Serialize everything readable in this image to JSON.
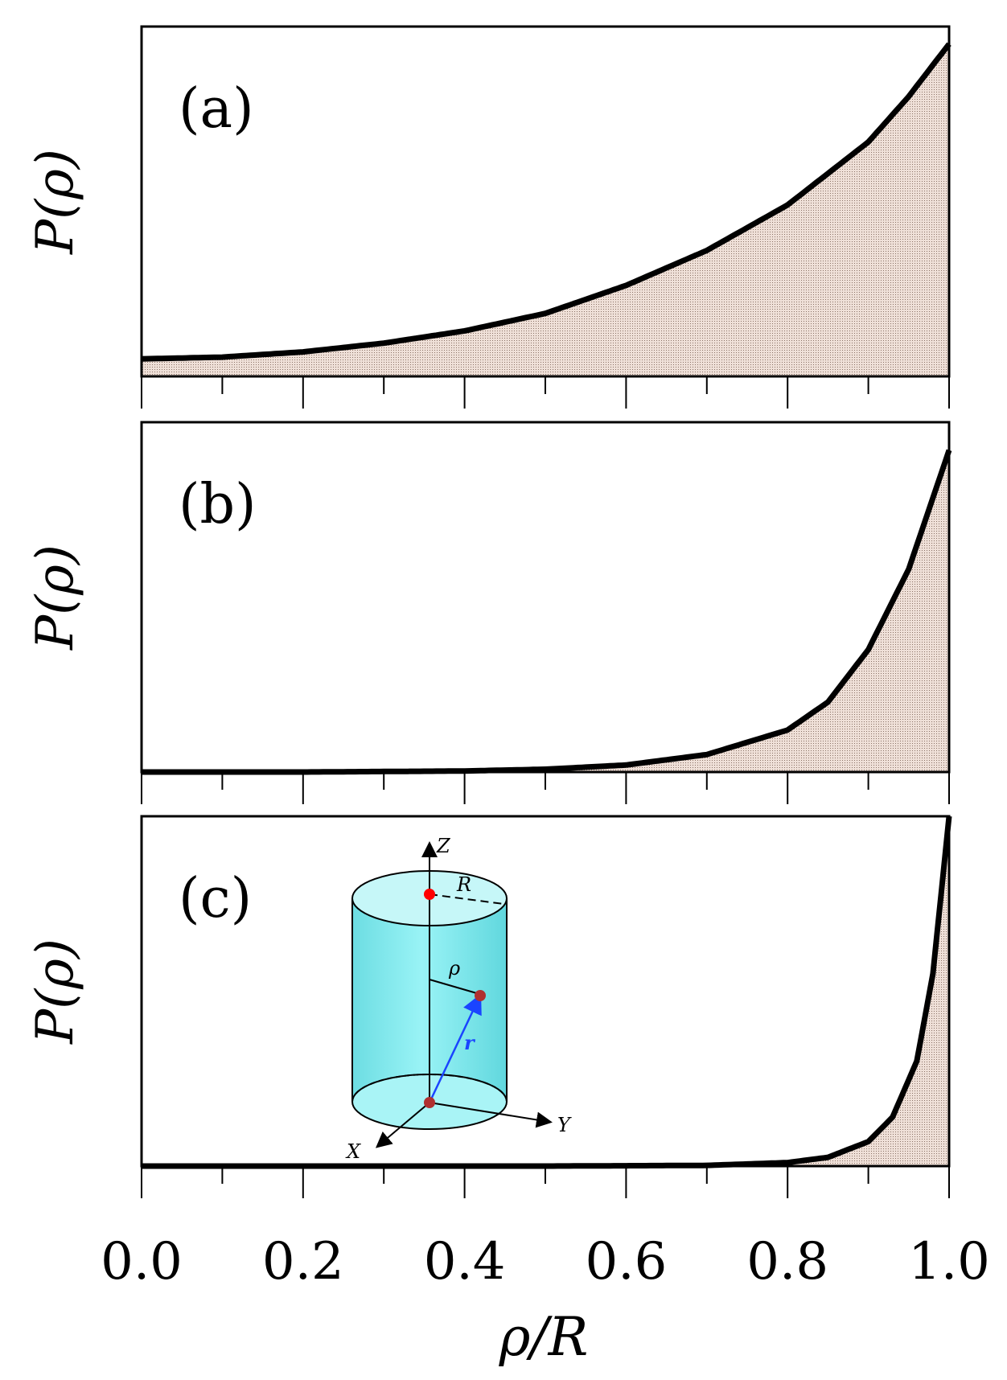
{
  "colors": {
    "curve": "#000000",
    "fill": "#efe0d8",
    "cylinder": "#66e5ea",
    "arrow": "#1a44ff",
    "point_top": "#ff0000",
    "point": "#b03030"
  },
  "chart_data": {
    "type": "area",
    "xlabel": "ρ/R",
    "x_ticks": [
      "0.0",
      "0.2",
      "0.4",
      "0.6",
      "0.8",
      "1.0"
    ],
    "xlim": [
      0,
      1
    ],
    "ylim": [
      0,
      1
    ],
    "y_ticks": "none",
    "grid": false,
    "panels": [
      {
        "label": "(a)",
        "ylabel": "P(ρ)",
        "series": [
          {
            "x": [
              0,
              0.1,
              0.2,
              0.3,
              0.4,
              0.5,
              0.6,
              0.7,
              0.8,
              0.9,
              0.95,
              1.0
            ],
            "y": [
              0.05,
              0.055,
              0.07,
              0.095,
              0.13,
              0.18,
              0.26,
              0.36,
              0.49,
              0.67,
              0.8,
              0.95
            ]
          }
        ]
      },
      {
        "label": "(b)",
        "ylabel": "P(ρ)",
        "series": [
          {
            "x": [
              0,
              0.2,
              0.4,
              0.5,
              0.6,
              0.7,
              0.8,
              0.85,
              0.9,
              0.95,
              1.0
            ],
            "y": [
              0.0,
              0.0,
              0.003,
              0.008,
              0.02,
              0.05,
              0.12,
              0.2,
              0.35,
              0.58,
              0.92
            ]
          }
        ]
      },
      {
        "label": "(c)",
        "ylabel": "P(ρ)",
        "series": [
          {
            "x": [
              0,
              0.5,
              0.7,
              0.8,
              0.85,
              0.9,
              0.93,
              0.96,
              0.98,
              1.0
            ],
            "y": [
              0.0,
              0.0,
              0.002,
              0.01,
              0.025,
              0.07,
              0.14,
              0.3,
              0.55,
              1.0
            ]
          }
        ]
      }
    ],
    "inset": {
      "axis_labels": [
        "Z",
        "Y",
        "X"
      ],
      "radius_label": "R",
      "rho_label": "ρ",
      "vector_label": "r"
    }
  }
}
